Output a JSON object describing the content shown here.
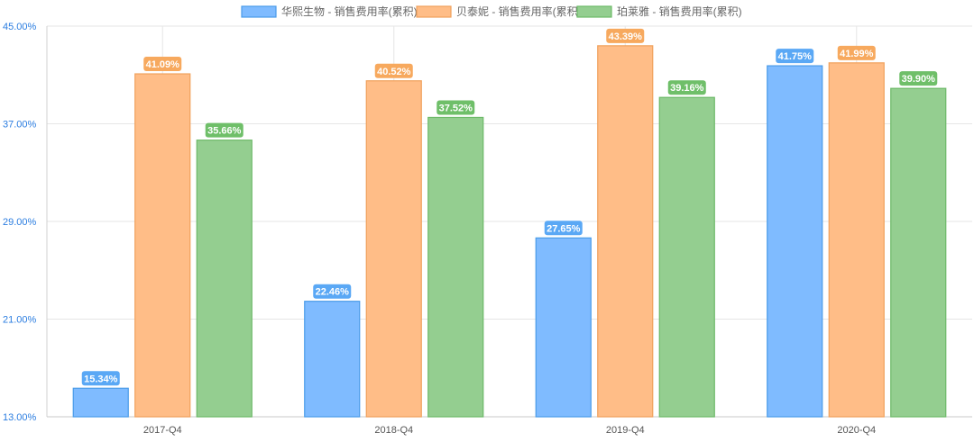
{
  "chart_data": {
    "type": "bar",
    "categories": [
      "2017-Q4",
      "2018-Q4",
      "2019-Q4",
      "2020-Q4"
    ],
    "series": [
      {
        "name": "华熙生物 - 销售费用率(累积)",
        "values": [
          15.34,
          22.46,
          27.65,
          41.75
        ],
        "labels": [
          "15.34%",
          "22.46%",
          "27.65%",
          "41.75%"
        ],
        "color": "#7fbbff",
        "border": "#4a9be8",
        "labelColor": "#5aa8f5"
      },
      {
        "name": "贝泰妮 - 销售费用率(累积)",
        "values": [
          41.09,
          40.52,
          43.39,
          41.99
        ],
        "labels": [
          "41.09%",
          "40.52%",
          "43.39%",
          "41.99%"
        ],
        "color": "#ffbd87",
        "border": "#f0a15c",
        "labelColor": "#f7a95e"
      },
      {
        "name": "珀莱雅 - 销售费用率(累积)",
        "values": [
          35.66,
          37.52,
          39.16,
          39.9
        ],
        "labels": [
          "35.66%",
          "37.52%",
          "39.16%",
          "39.90%"
        ],
        "color": "#94ce90",
        "border": "#6dba68",
        "labelColor": "#6fbf69"
      }
    ],
    "yticks": [
      "13.00%",
      "21.00%",
      "29.00%",
      "37.00%",
      "45.00%"
    ],
    "ylim": [
      13,
      45
    ],
    "grid": true,
    "legend": "top-center"
  }
}
